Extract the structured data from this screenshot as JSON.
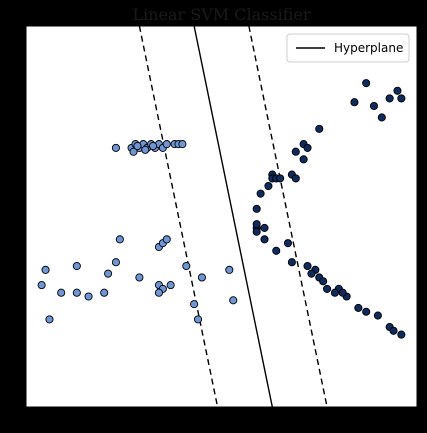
{
  "chart_data": {
    "type": "scatter",
    "title": "Linear SVM Classifier",
    "xlabel": "",
    "ylabel": "",
    "xlim": [
      0.0,
      10.0
    ],
    "ylim": [
      0.0,
      10.0
    ],
    "grid": false,
    "ticks_visible": false,
    "legend": {
      "placement": "top-right",
      "entries": [
        {
          "label": "Hyperplane",
          "style": "solid-line",
          "color": "#000000"
        }
      ]
    },
    "colors": {
      "background": "#000000",
      "plot_area": "#ffffff",
      "class_a": "#6f96d4",
      "class_b": "#0f2a5c",
      "marker_edge": "#000000"
    },
    "lines": [
      {
        "role": "hyperplane",
        "style": "solid",
        "points": [
          [
            4.3,
            10.0
          ],
          [
            6.3,
            0.0
          ]
        ]
      },
      {
        "role": "margin-lower",
        "style": "dashed",
        "points": [
          [
            2.9,
            10.0
          ],
          [
            4.9,
            0.0
          ]
        ]
      },
      {
        "role": "margin-upper",
        "style": "dashed",
        "points": [
          [
            5.7,
            10.0
          ],
          [
            7.7,
            0.0
          ]
        ]
      }
    ],
    "series": [
      {
        "class": "light",
        "marker": "circle",
        "points": [
          [
            2.3,
            6.8
          ],
          [
            2.7,
            6.8
          ],
          [
            2.8,
            6.9
          ],
          [
            2.9,
            6.8
          ],
          [
            3.0,
            6.9
          ],
          [
            3.1,
            6.8
          ],
          [
            3.2,
            6.9
          ],
          [
            3.3,
            6.8
          ],
          [
            3.4,
            6.9
          ],
          [
            3.5,
            6.8
          ],
          [
            3.6,
            6.9
          ],
          [
            3.8,
            6.9
          ],
          [
            3.9,
            6.9
          ],
          [
            4.0,
            6.9
          ],
          [
            2.75,
            6.7
          ],
          [
            2.85,
            6.85
          ],
          [
            3.05,
            6.75
          ],
          [
            3.25,
            6.85
          ],
          [
            2.4,
            4.4
          ],
          [
            3.4,
            4.2
          ],
          [
            3.5,
            4.3
          ],
          [
            3.6,
            4.4
          ],
          [
            1.3,
            3.7
          ],
          [
            2.3,
            3.8
          ],
          [
            2.1,
            3.5
          ],
          [
            0.5,
            3.6
          ],
          [
            0.4,
            3.2
          ],
          [
            0.9,
            3.0
          ],
          [
            1.3,
            3.0
          ],
          [
            1.6,
            2.9
          ],
          [
            2.0,
            3.0
          ],
          [
            2.9,
            3.4
          ],
          [
            3.4,
            3.2
          ],
          [
            3.5,
            3.1
          ],
          [
            3.4,
            3.0
          ],
          [
            3.7,
            3.2
          ],
          [
            4.1,
            3.7
          ],
          [
            4.5,
            3.4
          ],
          [
            4.3,
            2.7
          ],
          [
            4.4,
            2.3
          ],
          [
            5.2,
            3.6
          ],
          [
            5.3,
            2.8
          ],
          [
            0.6,
            2.3
          ]
        ]
      },
      {
        "class": "dark",
        "marker": "circle",
        "points": [
          [
            8.4,
            8.0
          ],
          [
            8.9,
            7.9
          ],
          [
            8.7,
            8.5
          ],
          [
            9.1,
            7.6
          ],
          [
            9.3,
            8.1
          ],
          [
            9.5,
            8.3
          ],
          [
            9.6,
            8.1
          ],
          [
            7.5,
            7.3
          ],
          [
            7.1,
            6.9
          ],
          [
            7.2,
            6.8
          ],
          [
            6.9,
            6.7
          ],
          [
            7.1,
            6.5
          ],
          [
            6.3,
            6.1
          ],
          [
            6.3,
            6.0
          ],
          [
            6.4,
            6.0
          ],
          [
            6.8,
            6.1
          ],
          [
            6.5,
            6.0
          ],
          [
            6.9,
            6.0
          ],
          [
            6.2,
            5.8
          ],
          [
            6.0,
            5.6
          ],
          [
            5.9,
            5.2
          ],
          [
            5.9,
            4.7
          ],
          [
            6.1,
            4.7
          ],
          [
            6.1,
            4.4
          ],
          [
            5.9,
            4.6
          ],
          [
            5.9,
            4.8
          ],
          [
            6.4,
            4.1
          ],
          [
            6.7,
            4.3
          ],
          [
            6.8,
            3.8
          ],
          [
            7.2,
            3.7
          ],
          [
            7.4,
            3.6
          ],
          [
            7.5,
            3.4
          ],
          [
            7.6,
            3.3
          ],
          [
            7.7,
            3.1
          ],
          [
            8.0,
            3.1
          ],
          [
            8.2,
            2.9
          ],
          [
            8.5,
            2.6
          ],
          [
            8.7,
            2.5
          ],
          [
            9.0,
            2.4
          ],
          [
            9.3,
            2.1
          ],
          [
            9.4,
            2.0
          ],
          [
            9.6,
            1.9
          ],
          [
            7.3,
            3.5
          ],
          [
            7.9,
            3.0
          ],
          [
            8.1,
            3.0
          ]
        ]
      }
    ]
  }
}
